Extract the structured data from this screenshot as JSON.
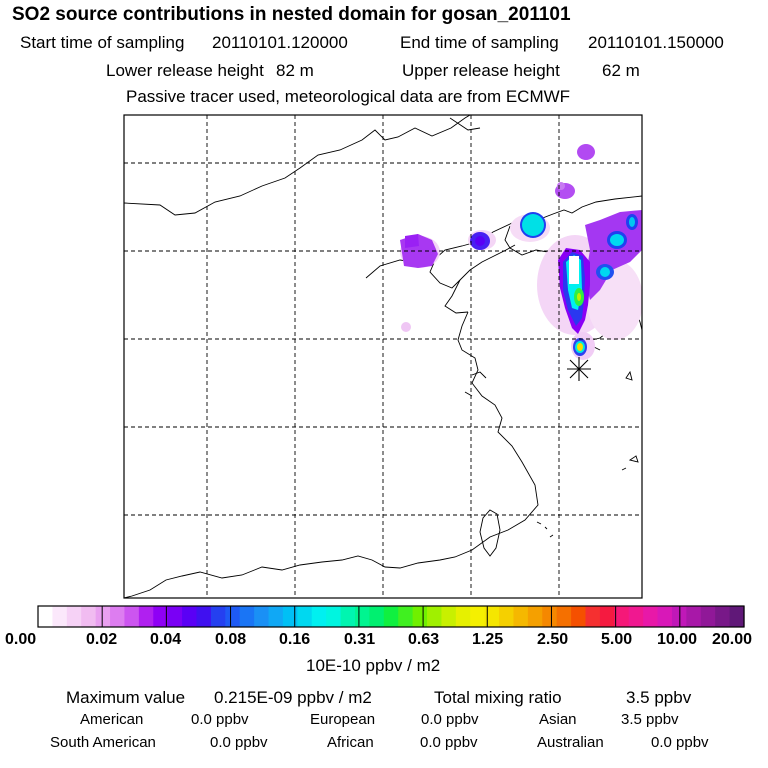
{
  "header": {
    "title": "SO2 source contributions in nested domain for gosan_201101",
    "start_label": "Start time of sampling",
    "start_value": "20110101.120000",
    "end_label": "End time of sampling",
    "end_value": "20110101.150000",
    "lower_label": "Lower release height",
    "lower_value": "82 m",
    "upper_label": "Upper release height",
    "upper_value": "62 m",
    "note": "Passive tracer used, meteorological data are from ECMWF"
  },
  "map": {
    "frame_color": "#000000",
    "grid_style": "dashed",
    "receptor_marker": "asterisk-icon"
  },
  "colorbar": {
    "tick_labels": [
      "0.00",
      "0.02",
      "0.04",
      "0.08",
      "0.16",
      "0.31",
      "0.63",
      "1.25",
      "2.50",
      "5.00",
      "10.00",
      "20.00"
    ],
    "unit_label": "10E-10 ppbv / m2",
    "colors": [
      "#ffffff",
      "#fbe8fb",
      "#f6d2f6",
      "#f1bcf1",
      "#e9a0f0",
      "#dd7df0",
      "#cc55f0",
      "#b020f0",
      "#8f00f5",
      "#7a00f5",
      "#5a00f5",
      "#4010f0",
      "#2540f0",
      "#1e5af5",
      "#1a75f5",
      "#1a90f5",
      "#10a8f5",
      "#00c0f5",
      "#00d8f0",
      "#00f0f0",
      "#00f5e0",
      "#00f5b0",
      "#00f590",
      "#00f070",
      "#10f040",
      "#40f020",
      "#70f000",
      "#a0f000",
      "#c8f000",
      "#e6f000",
      "#f5f000",
      "#f5e600",
      "#f5d000",
      "#f5b800",
      "#f5a000",
      "#f58800",
      "#f57000",
      "#f55000",
      "#f53030",
      "#f51a40",
      "#f51878",
      "#f01890",
      "#e818a8",
      "#d818b8",
      "#c018b8",
      "#a818a8",
      "#901898",
      "#781888",
      "#601878"
    ]
  },
  "stats": {
    "max_label": "Maximum value",
    "max_value": "0.215E-09 ppbv / m2",
    "total_label": "Total mixing ratio",
    "total_value": "3.5 ppbv",
    "regions": [
      {
        "name": "American",
        "value": "0.0 ppbv"
      },
      {
        "name": "European",
        "value": "0.0 ppbv"
      },
      {
        "name": "Asian",
        "value": "3.5 ppbv"
      },
      {
        "name": "South American",
        "value": "0.0 ppbv"
      },
      {
        "name": "African",
        "value": "0.0 ppbv"
      },
      {
        "name": "Australian",
        "value": "0.0 ppbv"
      }
    ]
  }
}
